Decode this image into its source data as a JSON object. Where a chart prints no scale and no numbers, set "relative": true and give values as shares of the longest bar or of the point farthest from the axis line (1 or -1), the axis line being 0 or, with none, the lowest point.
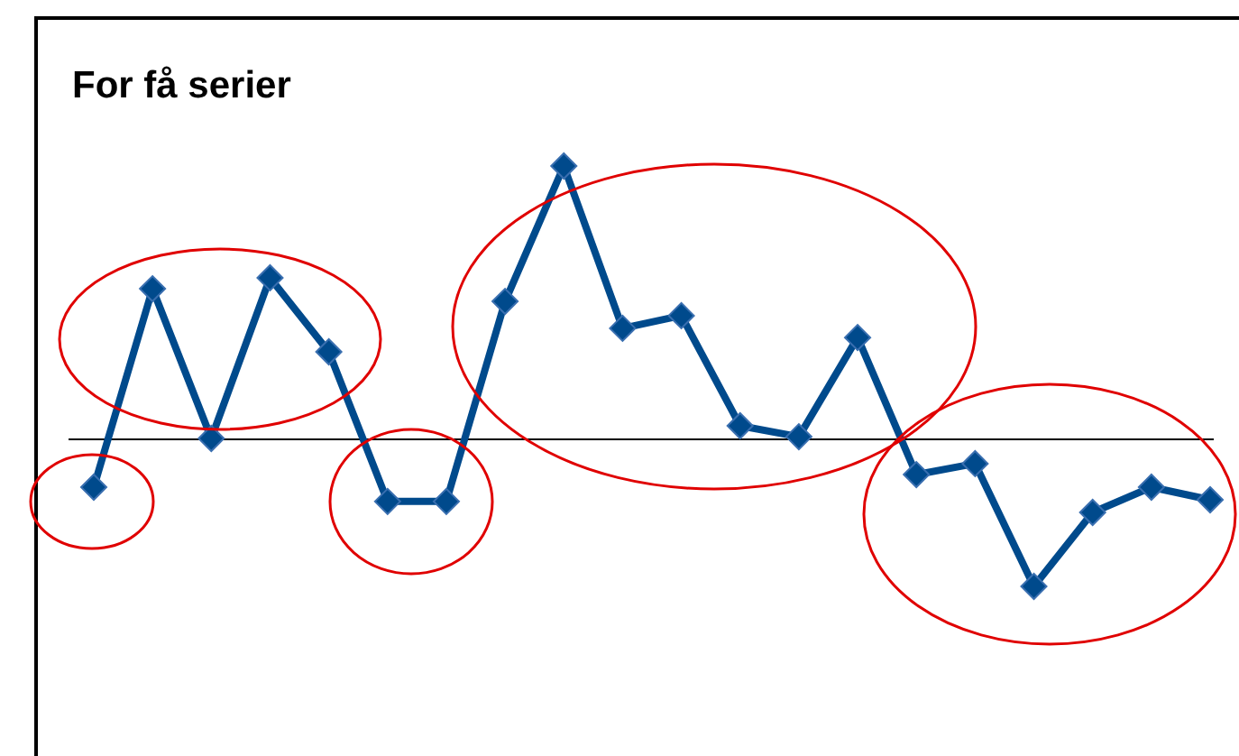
{
  "chart_data": {
    "type": "line",
    "title": "For få serier",
    "relative": true,
    "categories": [
      null,
      null,
      null,
      null,
      null,
      null,
      null,
      null,
      null,
      null,
      null,
      null,
      null,
      null,
      null,
      null,
      null,
      null,
      null,
      null
    ],
    "series": [
      {
        "color": "#004a8c",
        "values": [
          0.236,
          0.708,
          0.352,
          0.734,
          0.558,
          0.202,
          0.202,
          0.678,
          1,
          0.614,
          0.644,
          0.382,
          0.356,
          0.592,
          0.266,
          0.292,
          0,
          0.176,
          0.236,
          0.206
        ]
      }
    ],
    "ref_lines": [
      {
        "axis": "y",
        "value": 0.35,
        "color": "#000000"
      }
    ],
    "marker": "diamond",
    "line_style": "solid",
    "legend": false
  }
}
